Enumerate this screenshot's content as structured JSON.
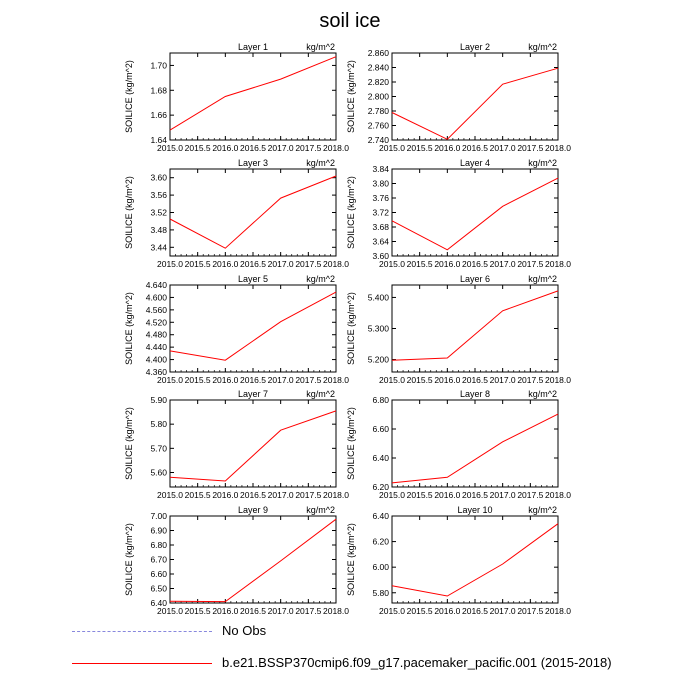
{
  "title": "soil ice",
  "legend": [
    {
      "label": "No Obs",
      "style": "dashed",
      "color": "#8888dd"
    },
    {
      "label": "b.e21.BSSP370cmip6.f09_g17.pacemaker_pacific.001 (2015-2018)",
      "style": "solid",
      "color": "#ff0000"
    }
  ],
  "chart_data": [
    {
      "type": "line",
      "title": "Layer 1",
      "units": "kg/m^2",
      "ylabel": "SOILICE  (kg/m^2)",
      "x": [
        2015.0,
        2016.0,
        2017.0,
        2018.0
      ],
      "values": [
        1.648,
        1.675,
        1.689,
        1.707
      ],
      "xlim": [
        2015.0,
        2018.0
      ],
      "ylim": [
        1.64,
        1.71
      ],
      "xticks": [
        "2015.0",
        "2015.5",
        "2016.0",
        "2016.5",
        "2017.0",
        "2017.5",
        "2018.0"
      ],
      "yticks": [
        "1.64",
        "1.66",
        "1.68",
        "1.70"
      ],
      "ytick_values": [
        1.64,
        1.66,
        1.68,
        1.7
      ]
    },
    {
      "type": "line",
      "title": "Layer 2",
      "units": "kg/m^2",
      "ylabel": "SOILICE  (kg/m^2)",
      "x": [
        2015.0,
        2016.0,
        2017.0,
        2018.0
      ],
      "values": [
        2.778,
        2.741,
        2.817,
        2.839
      ],
      "xlim": [
        2015.0,
        2018.0
      ],
      "ylim": [
        2.74,
        2.86
      ],
      "xticks": [
        "2015.0",
        "2015.5",
        "2016.0",
        "2016.5",
        "2017.0",
        "2017.5",
        "2018.0"
      ],
      "yticks": [
        "2.740",
        "2.760",
        "2.780",
        "2.800",
        "2.820",
        "2.840",
        "2.860"
      ],
      "ytick_values": [
        2.74,
        2.76,
        2.78,
        2.8,
        2.82,
        2.84,
        2.86
      ]
    },
    {
      "type": "line",
      "title": "Layer 3",
      "units": "kg/m^2",
      "ylabel": "SOILICE  (kg/m^2)",
      "x": [
        2015.0,
        2016.0,
        2017.0,
        2018.0
      ],
      "values": [
        3.505,
        3.438,
        3.553,
        3.604
      ],
      "xlim": [
        2015.0,
        2018.0
      ],
      "ylim": [
        3.42,
        3.62
      ],
      "xticks": [
        "2015.0",
        "2015.5",
        "2016.0",
        "2016.5",
        "2017.0",
        "2017.5",
        "2018.0"
      ],
      "yticks": [
        "3.44",
        "3.48",
        "3.52",
        "3.56",
        "3.60"
      ],
      "ytick_values": [
        3.44,
        3.48,
        3.52,
        3.56,
        3.6
      ]
    },
    {
      "type": "line",
      "title": "Layer 4",
      "units": "kg/m^2",
      "ylabel": "SOILICE  (kg/m^2)",
      "x": [
        2015.0,
        2016.0,
        2017.0,
        2018.0
      ],
      "values": [
        3.697,
        3.617,
        3.737,
        3.815
      ],
      "xlim": [
        2015.0,
        2018.0
      ],
      "ylim": [
        3.6,
        3.84
      ],
      "xticks": [
        "2015.0",
        "2015.5",
        "2016.0",
        "2016.5",
        "2017.0",
        "2017.5",
        "2018.0"
      ],
      "yticks": [
        "3.60",
        "3.64",
        "3.68",
        "3.72",
        "3.76",
        "3.80",
        "3.84"
      ],
      "ytick_values": [
        3.6,
        3.64,
        3.68,
        3.72,
        3.76,
        3.8,
        3.84
      ]
    },
    {
      "type": "line",
      "title": "Layer 5",
      "units": "kg/m^2",
      "ylabel": "SOILICE  (kg/m^2)",
      "x": [
        2015.0,
        2016.0,
        2017.0,
        2018.0
      ],
      "values": [
        4.428,
        4.398,
        4.522,
        4.617
      ],
      "xlim": [
        2015.0,
        2018.0
      ],
      "ylim": [
        4.36,
        4.64
      ],
      "xticks": [
        "2015.0",
        "2015.5",
        "2016.0",
        "2016.5",
        "2017.0",
        "2017.5",
        "2018.0"
      ],
      "yticks": [
        "4.360",
        "4.400",
        "4.440",
        "4.480",
        "4.520",
        "4.560",
        "4.600",
        "4.640"
      ],
      "ytick_values": [
        4.36,
        4.4,
        4.44,
        4.48,
        4.52,
        4.56,
        4.6,
        4.64
      ]
    },
    {
      "type": "line",
      "title": "Layer 6",
      "units": "kg/m^2",
      "ylabel": "SOILICE  (kg/m^2)",
      "x": [
        2015.0,
        2016.0,
        2017.0,
        2018.0
      ],
      "values": [
        5.198,
        5.205,
        5.357,
        5.421
      ],
      "xlim": [
        2015.0,
        2018.0
      ],
      "ylim": [
        5.16,
        5.44
      ],
      "xticks": [
        "2015.0",
        "2015.5",
        "2016.0",
        "2016.5",
        "2017.0",
        "2017.5",
        "2018.0"
      ],
      "yticks": [
        "5.200",
        "5.300",
        "5.400"
      ],
      "ytick_values": [
        5.2,
        5.3,
        5.4
      ]
    },
    {
      "type": "line",
      "title": "Layer 7",
      "units": "kg/m^2",
      "ylabel": "SOILICE  (kg/m^2)",
      "x": [
        2015.0,
        2016.0,
        2017.0,
        2018.0
      ],
      "values": [
        5.58,
        5.565,
        5.775,
        5.855
      ],
      "xlim": [
        2015.0,
        2018.0
      ],
      "ylim": [
        5.54,
        5.9
      ],
      "xticks": [
        "2015.0",
        "2015.5",
        "2016.0",
        "2016.5",
        "2017.0",
        "2017.5",
        "2018.0"
      ],
      "yticks": [
        "5.60",
        "5.70",
        "5.80",
        "5.90"
      ],
      "ytick_values": [
        5.6,
        5.7,
        5.8,
        5.9
      ]
    },
    {
      "type": "line",
      "title": "Layer 8",
      "units": "kg/m^2",
      "ylabel": "SOILICE  (kg/m^2)",
      "x": [
        2015.0,
        2016.0,
        2017.0,
        2018.0
      ],
      "values": [
        6.228,
        6.267,
        6.512,
        6.703
      ],
      "xlim": [
        2015.0,
        2018.0
      ],
      "ylim": [
        6.2,
        6.8
      ],
      "xticks": [
        "2015.0",
        "2015.5",
        "2016.0",
        "2016.5",
        "2017.0",
        "2017.5",
        "2018.0"
      ],
      "yticks": [
        "6.20",
        "6.40",
        "6.60",
        "6.80"
      ],
      "ytick_values": [
        6.2,
        6.4,
        6.6,
        6.8
      ]
    },
    {
      "type": "line",
      "title": "Layer 9",
      "units": "kg/m^2",
      "ylabel": "SOILICE  (kg/m^2)",
      "x": [
        2015.0,
        2016.0,
        2017.0,
        2018.0
      ],
      "values": [
        6.412,
        6.41,
        6.69,
        6.978
      ],
      "xlim": [
        2015.0,
        2018.0
      ],
      "ylim": [
        6.4,
        7.0
      ],
      "xticks": [
        "2015.0",
        "2015.5",
        "2016.0",
        "2016.5",
        "2017.0",
        "2017.5",
        "2018.0"
      ],
      "yticks": [
        "6.40",
        "6.50",
        "6.60",
        "6.70",
        "6.80",
        "6.90",
        "7.00"
      ],
      "ytick_values": [
        6.4,
        6.5,
        6.6,
        6.7,
        6.8,
        6.9,
        7.0
      ]
    },
    {
      "type": "line",
      "title": "Layer 10",
      "units": "kg/m^2",
      "ylabel": "SOILICE  (kg/m^2)",
      "x": [
        2015.0,
        2016.0,
        2017.0,
        2018.0
      ],
      "values": [
        5.855,
        5.775,
        6.025,
        6.34
      ],
      "xlim": [
        2015.0,
        2018.0
      ],
      "ylim": [
        5.72,
        6.4
      ],
      "xticks": [
        "2015.0",
        "2015.5",
        "2016.0",
        "2016.5",
        "2017.0",
        "2017.5",
        "2018.0"
      ],
      "yticks": [
        "5.80",
        "6.00",
        "6.20",
        "6.40"
      ],
      "ytick_values": [
        5.8,
        6.0,
        6.2,
        6.4
      ]
    }
  ]
}
